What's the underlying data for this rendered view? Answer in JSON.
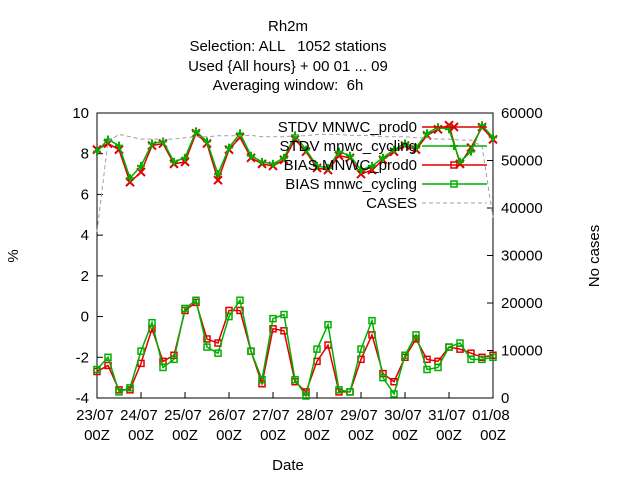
{
  "chart_data": {
    "type": "line",
    "title": "Rh2m",
    "subtitle": [
      "Selection: ALL   1052 stations",
      "Used {All hours} + 00 01 ... 09",
      "Averaging window:  6h"
    ],
    "x_label": "Date",
    "y_label": "%",
    "y2_label": "No cases",
    "x": [
      "23/07 00Z",
      "23/07 06Z",
      "23/07 12Z",
      "23/07 18Z",
      "24/07 00Z",
      "24/07 06Z",
      "24/07 12Z",
      "24/07 18Z",
      "25/07 00Z",
      "25/07 06Z",
      "25/07 12Z",
      "25/07 18Z",
      "26/07 00Z",
      "26/07 06Z",
      "26/07 12Z",
      "26/07 18Z",
      "27/07 00Z",
      "27/07 06Z",
      "27/07 12Z",
      "27/07 18Z",
      "28/07 00Z",
      "28/07 06Z",
      "28/07 12Z",
      "28/07 18Z",
      "29/07 00Z",
      "29/07 06Z",
      "29/07 12Z",
      "29/07 18Z",
      "30/07 00Z",
      "30/07 06Z",
      "30/07 12Z",
      "30/07 18Z",
      "31/07 00Z",
      "31/07 06Z",
      "31/07 12Z",
      "31/07 18Z",
      "01/08 00Z"
    ],
    "xticks": [
      "23/07 00Z",
      "24/07 00Z",
      "25/07 00Z",
      "26/07 00Z",
      "27/07 00Z",
      "28/07 00Z",
      "29/07 00Z",
      "30/07 00Z",
      "31/07 00Z",
      "01/08 00Z"
    ],
    "ylim": [
      -4,
      10
    ],
    "yticks": [
      -4,
      -2,
      0,
      2,
      4,
      6,
      8,
      10
    ],
    "y2lim": [
      0,
      60000
    ],
    "y2ticks": [
      0,
      10000,
      20000,
      30000,
      40000,
      50000,
      60000
    ],
    "legend": "top right",
    "series": [
      {
        "name": "STDV MNWC_prod0",
        "color": "#e00000",
        "marker": "x",
        "values": [
          8.2,
          8.5,
          8.2,
          6.6,
          7.1,
          8.4,
          8.5,
          7.5,
          7.6,
          9.0,
          8.5,
          6.7,
          8.2,
          8.8,
          7.8,
          7.5,
          7.4,
          7.7,
          8.7,
          8.1,
          7.3,
          7.2,
          7.9,
          7.8,
          7.0,
          7.2,
          7.7,
          8.1,
          8.4,
          8.2,
          8.9,
          9.2,
          9.4,
          7.5,
          8.3,
          9.3,
          8.7
        ]
      },
      {
        "name": "STDV mnwc_cycling",
        "color": "#00b000",
        "marker": "+",
        "values": [
          8.1,
          8.7,
          8.4,
          6.8,
          7.4,
          8.5,
          8.6,
          7.6,
          7.8,
          9.1,
          8.6,
          7.0,
          8.3,
          9.0,
          7.9,
          7.6,
          7.5,
          7.8,
          8.9,
          8.2,
          7.4,
          7.3,
          8.1,
          7.9,
          7.2,
          7.4,
          7.8,
          8.2,
          8.5,
          8.3,
          9.0,
          9.3,
          9.2,
          7.6,
          8.1,
          9.4,
          8.8
        ]
      },
      {
        "name": "BIAS MNWC_prod0",
        "color": "#e00000",
        "marker": "square",
        "values": [
          -2.7,
          -2.4,
          -3.6,
          -3.6,
          -2.3,
          -0.6,
          -2.2,
          -1.9,
          0.3,
          0.7,
          -1.1,
          -1.3,
          0.3,
          0.3,
          -1.7,
          -3.3,
          -0.6,
          -0.7,
          -3.2,
          -3.7,
          -2.2,
          -1.4,
          -3.7,
          -3.7,
          -2.1,
          -0.9,
          -2.8,
          -3.2,
          -2.0,
          -1.1,
          -2.1,
          -2.2,
          -1.5,
          -1.6,
          -1.8,
          -2.0,
          -1.9
        ]
      },
      {
        "name": "BIAS mnwc_cycling",
        "color": "#00b000",
        "marker": "square",
        "values": [
          -2.6,
          -2.0,
          -3.7,
          -3.5,
          -1.7,
          -0.3,
          -2.5,
          -2.1,
          0.4,
          0.8,
          -1.5,
          -1.8,
          0.0,
          0.8,
          -1.7,
          -3.1,
          -0.1,
          0.1,
          -3.1,
          -3.9,
          -1.6,
          -0.4,
          -3.6,
          -3.7,
          -1.6,
          -0.2,
          -3.0,
          -3.8,
          -1.9,
          -0.9,
          -2.6,
          -2.5,
          -1.5,
          -1.3,
          -2.1,
          -2.1,
          -2.0
        ]
      },
      {
        "name": "CASES",
        "color": "#a0a0a0",
        "dash": true,
        "axis": "y2",
        "values": [
          35000,
          54000,
          55500,
          55000,
          54500,
          54500,
          54500,
          54500,
          54800,
          55000,
          55000,
          55200,
          55200,
          55200,
          55300,
          55000,
          55000,
          55000,
          55200,
          55200,
          55500,
          55500,
          55500,
          55300,
          55300,
          55200,
          55000,
          55000,
          55000,
          54800,
          54800,
          54500,
          54500,
          54300,
          54300,
          53000,
          38000
        ]
      }
    ]
  }
}
